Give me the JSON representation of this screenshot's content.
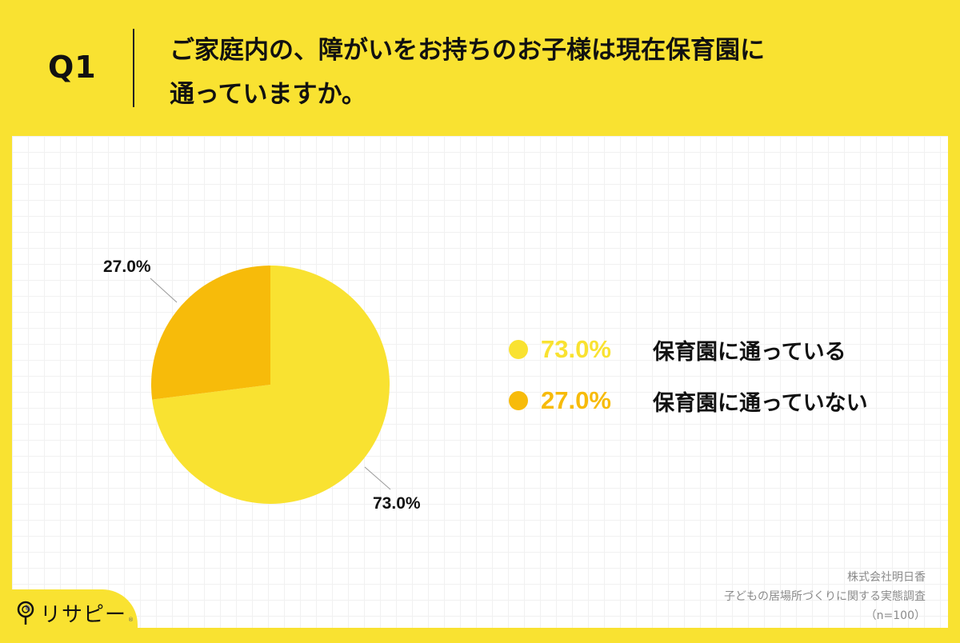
{
  "header": {
    "question_number": "Q1",
    "title_line1": "ご家庭内の、障がいをお持ちのお子様は現在保育園に",
    "title_line2": "通っていますか。"
  },
  "chart_data": {
    "type": "pie",
    "title": "ご家庭内の、障がいをお持ちのお子様は現在保育園に通っていますか。",
    "categories": [
      "保育園に通っている",
      "保育園に通っていない"
    ],
    "values": [
      73.0,
      27.0
    ],
    "labels": [
      "73.0%",
      "27.0%"
    ],
    "colors": [
      "#f9e231",
      "#f7bb0a"
    ],
    "start_angle": "12 o'clock, clockwise",
    "legend_position": "right",
    "n": 100
  },
  "pie_labels": {
    "slice_a": "73.0%",
    "slice_b": "27.0%"
  },
  "legend": {
    "items": [
      {
        "percent": "73.0%",
        "label": "保育園に通っている",
        "color": "#f9e231"
      },
      {
        "percent": "27.0%",
        "label": "保育園に通っていない",
        "color": "#f7bb0a"
      }
    ]
  },
  "source": {
    "company": "株式会社明日香",
    "survey": "子どもの居場所づくりに関する実態調査",
    "sample": "（n=100）"
  },
  "brand": {
    "logo_text": "リサピー",
    "registered": "®"
  }
}
